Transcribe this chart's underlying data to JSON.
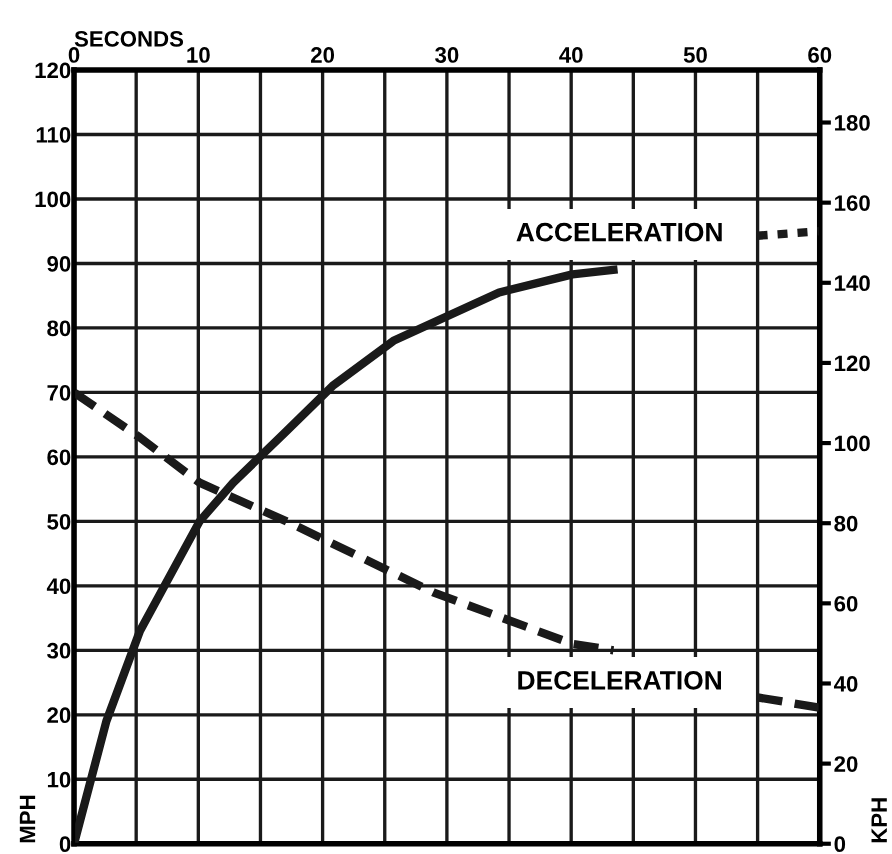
{
  "chart_data": {
    "type": "line",
    "xlabel": "SECONDS",
    "ylabel": "MPH",
    "y2label": "KPH",
    "series": [
      {
        "name": "ACCELERATION",
        "color": "#1a1a1a",
        "line_style": "solid",
        "x": [
          0,
          2.6,
          5.3,
          10.1,
          12.8,
          17.1,
          20.8,
          25.7,
          34.2,
          40.1,
          43.4
        ],
        "values": [
          0,
          19,
          33,
          50,
          56,
          64,
          71,
          78,
          85.5,
          88.3,
          89
        ]
      },
      {
        "color": "#1a1a1a",
        "line_style": "dotted",
        "x": [
          55,
          60
        ],
        "values": [
          94.3,
          95
        ]
      },
      {
        "name": "DECELERATION",
        "color": "#1a1a1a",
        "line_style": "dashed",
        "x": [
          0,
          5.3,
          10.1,
          17.1,
          28.9,
          40.1,
          43.4
        ],
        "values": [
          70,
          63,
          56,
          50,
          39,
          31,
          30
        ]
      },
      {
        "color": "#1a1a1a",
        "line_style": "dashed",
        "x": [
          55,
          60
        ],
        "values": [
          22.7,
          21.1
        ]
      }
    ],
    "xlim": [
      0,
      60
    ],
    "xticks": [
      0,
      {
        "value": 5,
        "label": null
      },
      10,
      {
        "value": 15,
        "label": null
      },
      20,
      {
        "value": 25,
        "label": null
      },
      30,
      {
        "value": 35,
        "label": null
      },
      40,
      {
        "value": 45,
        "label": null
      },
      50,
      {
        "value": 55,
        "label": null
      },
      60
    ],
    "ylim": [
      0,
      120
    ],
    "yticks": [
      0,
      10,
      20,
      30,
      40,
      50,
      60,
      70,
      80,
      90,
      100,
      110,
      120
    ],
    "y2lim": [
      0,
      193.1
    ],
    "y2ticks": [
      0,
      20,
      40,
      60,
      80,
      100,
      120,
      140,
      160,
      180
    ],
    "grid": true,
    "legend": false
  }
}
